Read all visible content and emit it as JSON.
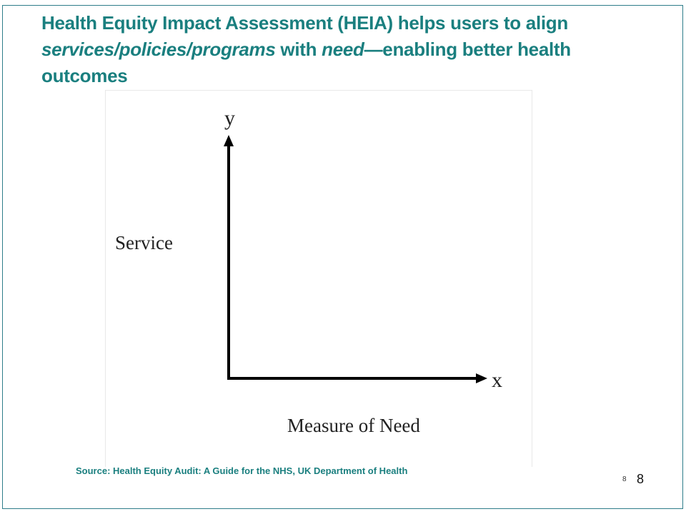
{
  "slide": {
    "title_part1": "Health Equity Impact Assessment (HEIA) helps users to align ",
    "title_italic1": "services/policies/programs",
    "title_part2": " with ",
    "title_italic2": "need",
    "title_part3": "—enabling better health outcomes",
    "source": "Source: Health Equity Audit: A Guide for the NHS, UK Department of Health",
    "page_number_small": "8",
    "page_number_large": "8",
    "accent_color": "#1a7f7f"
  },
  "diagram": {
    "y_axis_letter": "y",
    "x_axis_letter": "x",
    "y_axis_label": "Service",
    "x_axis_label": "Measure of Need",
    "axis_color": "#000000"
  }
}
